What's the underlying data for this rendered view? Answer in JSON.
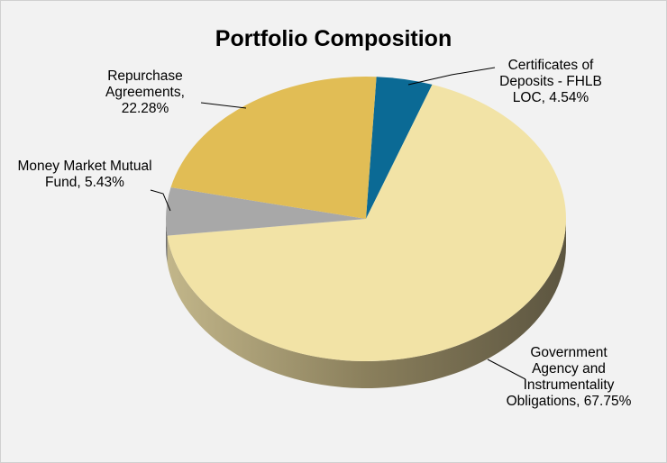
{
  "chart_data": {
    "type": "pie",
    "title": "Portfolio Composition",
    "categories": [
      "Certificates of Deposits - FHLB LOC,",
      "Government Agency and Instrumentality Obligations,",
      "Money Market Mutual Fund,",
      "Repurchase Agreements,"
    ],
    "values": [
      4.54,
      67.75,
      5.43,
      22.28
    ],
    "value_labels": [
      "4.54%",
      "67.75%",
      "5.43%",
      "22.28%"
    ],
    "colors": [
      "#0b6a95",
      "#f2e3a6",
      "#a8a8a8",
      "#e1bd55"
    ]
  }
}
